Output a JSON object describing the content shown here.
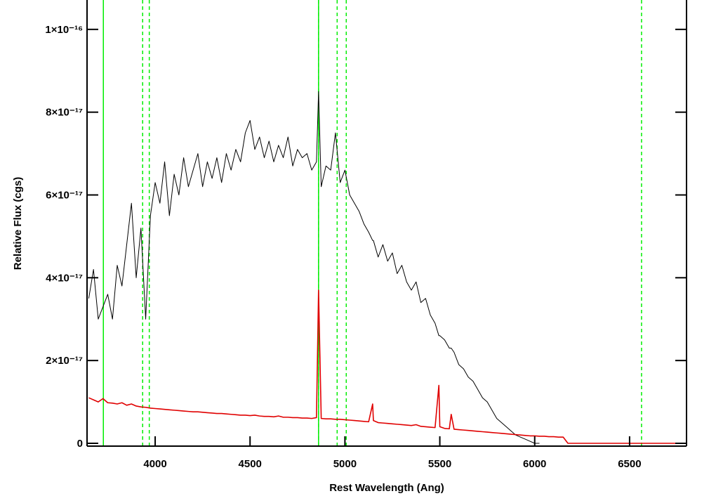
{
  "chart_data": {
    "type": "line",
    "xlabel": "Rest Wavelength (Ang)",
    "ylabel": "Relative Flux (cgs)",
    "xlim": [
      3641,
      6800
    ],
    "ylim": [
      -6.8e-19,
      1.071e-16
    ],
    "xticks": [
      4000,
      4500,
      5000,
      5500,
      6000,
      6500
    ],
    "yticks": [
      0,
      {
        "value": 2e-17,
        "label": "2×10⁻¹⁷"
      },
      {
        "value": 4e-17,
        "label": "4×10⁻¹⁷"
      },
      {
        "value": 6e-17,
        "label": "6×10⁻¹⁷"
      },
      {
        "value": 8e-17,
        "label": "8×10⁻¹⁷"
      },
      {
        "value": 1e-16,
        "label": "1×10⁻¹⁶"
      }
    ],
    "vlines": {
      "color": "#00ee00",
      "dashed": [
        3727,
        3934,
        3969,
        4861,
        4959,
        5007,
        6563
      ],
      "solid": [
        3727,
        4861
      ]
    },
    "x": [
      3650,
      3675,
      3700,
      3725,
      3750,
      3775,
      3800,
      3825,
      3850,
      3875,
      3900,
      3925,
      3950,
      3975,
      4000,
      4025,
      4050,
      4075,
      4100,
      4125,
      4150,
      4175,
      4200,
      4225,
      4250,
      4275,
      4300,
      4325,
      4350,
      4375,
      4400,
      4425,
      4450,
      4475,
      4500,
      4525,
      4550,
      4575,
      4600,
      4625,
      4650,
      4675,
      4700,
      4725,
      4750,
      4775,
      4800,
      4825,
      4850,
      4861,
      4875,
      4900,
      4925,
      4950,
      4975,
      5000,
      5025,
      5050,
      5075,
      5100,
      5125,
      5146,
      5150,
      5175,
      5200,
      5225,
      5250,
      5275,
      5300,
      5325,
      5350,
      5375,
      5400,
      5425,
      5450,
      5475,
      5495,
      5500,
      5525,
      5550,
      5560,
      5575,
      5600,
      5625,
      5650,
      5675,
      5700,
      5725,
      5750,
      5775,
      5800,
      5825,
      5850,
      5875,
      5900,
      5925,
      5950,
      5975,
      6000,
      6025,
      6050,
      6075,
      6100,
      6125,
      6150,
      6175,
      6200,
      6225,
      6250,
      6275,
      6300,
      6325,
      6350,
      6375,
      6400,
      6425,
      6450,
      6475,
      6500,
      6525,
      6550,
      6575,
      6600,
      6625,
      6650,
      6675,
      6700,
      6725,
      6750,
      6775,
      6800
    ],
    "series": [
      {
        "color": "#000000",
        "values": [
          3.5e-17,
          4.2e-17,
          3e-17,
          3.3e-17,
          3.6e-17,
          3e-17,
          4.3e-17,
          3.8e-17,
          4.8e-17,
          5.8e-17,
          4e-17,
          5.2e-17,
          3e-17,
          5.5e-17,
          6.3e-17,
          5.8e-17,
          6.8e-17,
          5.5e-17,
          6.5e-17,
          6e-17,
          6.9e-17,
          6.2e-17,
          6.6e-17,
          7e-17,
          6.2e-17,
          6.8e-17,
          6.4e-17,
          6.9e-17,
          6.3e-17,
          7e-17,
          6.6e-17,
          7.1e-17,
          6.8e-17,
          7.5e-17,
          7.8e-17,
          7.1e-17,
          7.4e-17,
          6.9e-17,
          7.3e-17,
          6.8e-17,
          7.2e-17,
          6.9e-17,
          7.4e-17,
          6.7e-17,
          7.1e-17,
          6.9e-17,
          7e-17,
          6.6e-17,
          6.8e-17,
          8.5e-17,
          6.2e-17,
          6.7e-17,
          6.6e-17,
          7.5e-17,
          6.3e-17,
          6.6e-17,
          6e-17,
          5.8e-17,
          5.6e-17,
          5.3e-17,
          5.1e-17,
          4.9e-17,
          4.9e-17,
          4.5e-17,
          4.8e-17,
          4.4e-17,
          4.6e-17,
          4.1e-17,
          4.3e-17,
          3.9e-17,
          3.7e-17,
          3.9e-17,
          3.4e-17,
          3.5e-17,
          3.1e-17,
          2.9e-17,
          2.6e-17,
          2.6e-17,
          2.5e-17,
          2.3e-17,
          2.3e-17,
          2.2e-17,
          1.9e-17,
          1.8e-17,
          1.6e-17,
          1.5e-17,
          1.3e-17,
          1.1e-17,
          1e-17,
          8e-18,
          6e-18,
          5e-18,
          4e-18,
          3e-18,
          2e-18,
          1.5e-18,
          1e-18,
          5e-19,
          0,
          0,
          null,
          null,
          null,
          null,
          null,
          null,
          null,
          null,
          null,
          null,
          null,
          null,
          null,
          null,
          null,
          null,
          null,
          null,
          null,
          null,
          null,
          null,
          null,
          null,
          null,
          null,
          null,
          null,
          null,
          null,
          null
        ]
      },
      {
        "color": "#e00000",
        "values": [
          1.1e-17,
          1.05e-17,
          1e-17,
          1.08e-17,
          9.8e-18,
          9.7e-18,
          9.5e-18,
          9.8e-18,
          9.2e-18,
          9.5e-18,
          9e-18,
          8.8e-18,
          8.7e-18,
          8.5e-18,
          8.4e-18,
          8.3e-18,
          8.2e-18,
          8.1e-18,
          8e-18,
          7.9e-18,
          7.8e-18,
          7.7e-18,
          7.6e-18,
          7.6e-18,
          7.5e-18,
          7.4e-18,
          7.3e-18,
          7.2e-18,
          7.2e-18,
          7.1e-18,
          7e-18,
          6.9e-18,
          6.8e-18,
          6.8e-18,
          6.7e-18,
          6.8e-18,
          6.6e-18,
          6.5e-18,
          6.5e-18,
          6.4e-18,
          6.6e-18,
          6.3e-18,
          6.3e-18,
          6.2e-18,
          6.2e-18,
          6.1e-18,
          6.1e-18,
          6e-18,
          6.2e-18,
          3.7e-17,
          6e-18,
          5.9e-18,
          5.9e-18,
          5.8e-18,
          5.8e-18,
          5.7e-18,
          5.6e-18,
          5.5e-18,
          5.4e-18,
          5.3e-18,
          5.2e-18,
          9.5e-18,
          5.5e-18,
          5e-18,
          4.9e-18,
          4.8e-18,
          4.7e-18,
          4.6e-18,
          4.5e-18,
          4.4e-18,
          4.3e-18,
          4.5e-18,
          4.1e-18,
          4e-18,
          3.9e-18,
          3.8e-18,
          1.4e-17,
          4e-18,
          3.6e-18,
          3.5e-18,
          7e-18,
          3.4e-18,
          3.3e-18,
          3.2e-18,
          3.1e-18,
          3e-18,
          2.9e-18,
          2.8e-18,
          2.7e-18,
          2.6e-18,
          2.5e-18,
          2.4e-18,
          2.3e-18,
          2.2e-18,
          2.1e-18,
          2e-18,
          1.9e-18,
          1.8e-18,
          1.8e-18,
          1.7e-18,
          1.7e-18,
          1.6e-18,
          1.6e-18,
          1.5e-18,
          1.5e-18,
          0,
          0,
          0,
          0,
          0,
          0,
          0,
          0,
          0,
          0,
          0,
          0,
          0,
          0,
          0,
          0,
          0,
          0,
          0,
          0,
          0,
          0,
          0,
          0,
          0,
          0
        ]
      }
    ]
  }
}
